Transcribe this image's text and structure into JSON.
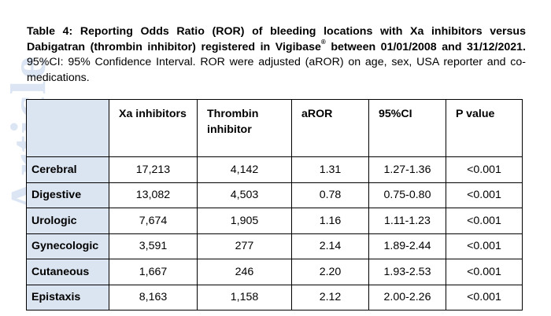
{
  "caption": {
    "bold_part": "Table 4: Reporting Odds Ratio (ROR) of bleeding locations with Xa inhibitors versus Dabigatran (thrombin inhibitor) registered in Vigibase",
    "bold_reg": "®",
    "bold_tail": " between 01/01/2008 and 31/12/2021.",
    "rest": " 95%CI: 95% Confidence Interval. ROR were adjusted (aROR) on age, sex, USA reporter and co-medications."
  },
  "watermark": "Article",
  "table": {
    "headers": [
      "",
      "Xa inhibitors",
      "Thrombin inhibitor",
      "aROR",
      "95%CI",
      "P value"
    ],
    "rows": [
      {
        "location": "Cerebral",
        "xa": "17,213",
        "thrombin": "4,142",
        "aror": "1.31",
        "ci": "1.27-1.36",
        "p": "<0.001"
      },
      {
        "location": "Digestive",
        "xa": "13,082",
        "thrombin": "4,503",
        "aror": "0.78",
        "ci": "0.75-0.80",
        "p": "<0.001"
      },
      {
        "location": "Urologic",
        "xa": "7,674",
        "thrombin": "1,905",
        "aror": "1.16",
        "ci": "1.11-1.23",
        "p": "<0.001"
      },
      {
        "location": "Gynecologic",
        "xa": "3,591",
        "thrombin": "277",
        "aror": "2.14",
        "ci": "1.89-2.44",
        "p": "<0.001"
      },
      {
        "location": "Cutaneous",
        "xa": "1,667",
        "thrombin": "246",
        "aror": "2.20",
        "ci": "1.93-2.53",
        "p": "<0.001"
      },
      {
        "location": "Epistaxis",
        "xa": "8,163",
        "thrombin": "1,158",
        "aror": "2.12",
        "ci": "2.00-2.26",
        "p": "<0.001"
      }
    ]
  }
}
